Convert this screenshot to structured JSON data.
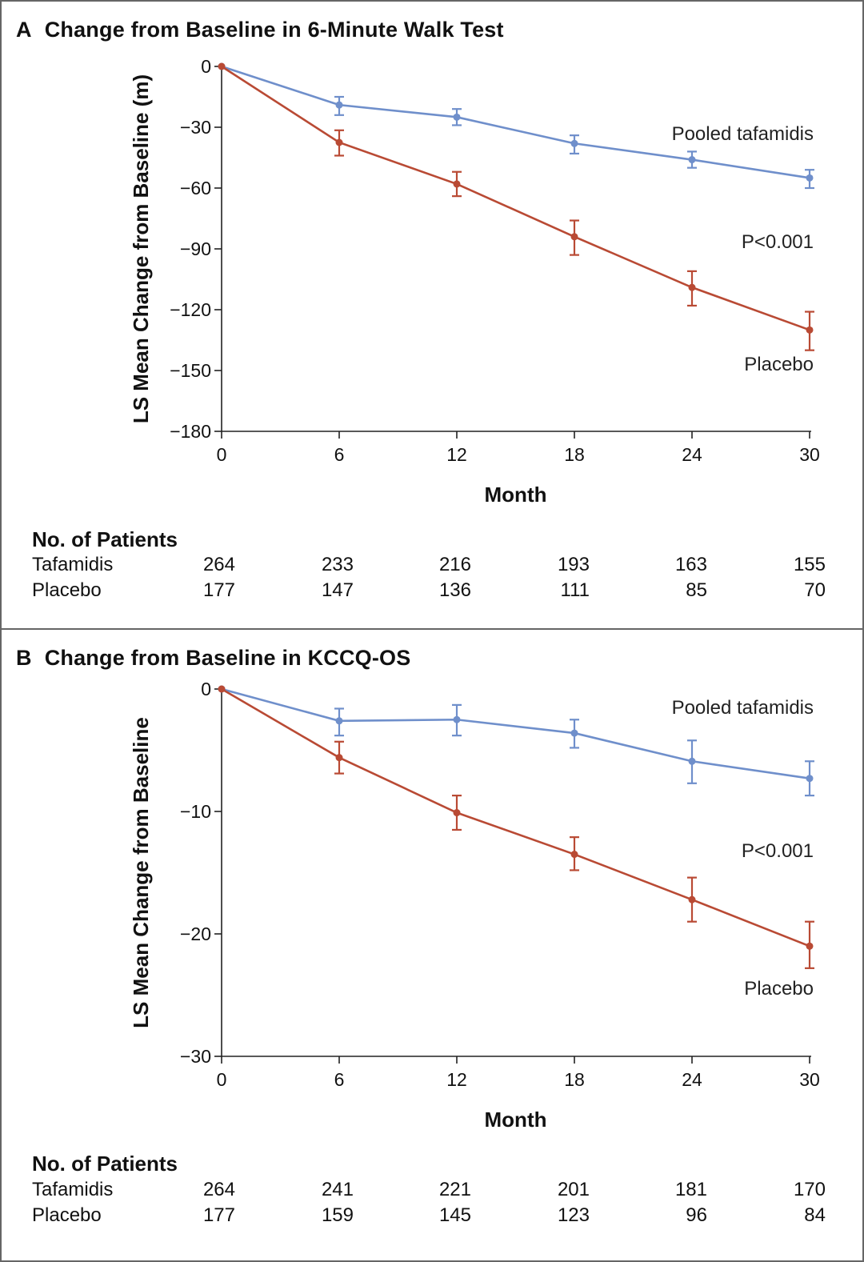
{
  "chart_data": [
    {
      "type": "line",
      "panel_letter": "A",
      "title": "Change from Baseline in 6-Minute Walk Test",
      "xlabel": "Month",
      "ylabel": "LS Mean Change from Baseline (m)",
      "x": [
        0,
        6,
        12,
        18,
        24,
        30
      ],
      "xticks": [
        "0",
        "6",
        "12",
        "18",
        "24",
        "30"
      ],
      "yticks": [
        0,
        -30,
        -60,
        -90,
        -120,
        -150,
        -180
      ],
      "ytick_labels": [
        "0",
        "−30",
        "−60",
        "−90",
        "−120",
        "−150",
        "−180"
      ],
      "ylim": [
        -180,
        0
      ],
      "xlim": [
        0,
        30
      ],
      "series": [
        {
          "name": "Pooled tafamidis",
          "color": "#6f8fcb",
          "values": [
            0,
            -19,
            -25,
            -38,
            -46,
            -55
          ],
          "err_low": [
            0,
            -24,
            -29,
            -43,
            -50,
            -60
          ],
          "err_high": [
            0,
            -15,
            -21,
            -34,
            -42,
            -51
          ]
        },
        {
          "name": "Placebo",
          "color": "#b94a34",
          "values": [
            0,
            -37.5,
            -58,
            -84,
            -109,
            -130
          ],
          "err_low": [
            0,
            -44,
            -64,
            -93,
            -118,
            -140
          ],
          "err_high": [
            0,
            -31.5,
            -52,
            -76,
            -101,
            -121
          ]
        }
      ],
      "annotation": "P<0.001",
      "patients": {
        "heading": "No. of Patients",
        "rows": [
          {
            "label": "Tafamidis",
            "counts": [
              "264",
              "233",
              "216",
              "193",
              "163",
              "155"
            ]
          },
          {
            "label": "Placebo",
            "counts": [
              "177",
              "147",
              "136",
              "111",
              "85",
              "70"
            ]
          }
        ]
      }
    },
    {
      "type": "line",
      "panel_letter": "B",
      "title": "Change from Baseline in KCCQ-OS",
      "xlabel": "Month",
      "ylabel": "LS Mean Change from Baseline",
      "x": [
        0,
        6,
        12,
        18,
        24,
        30
      ],
      "xticks": [
        "0",
        "6",
        "12",
        "18",
        "24",
        "30"
      ],
      "yticks": [
        0,
        -10,
        -20,
        -30
      ],
      "ytick_labels": [
        "0",
        "−10",
        "−20",
        "−30"
      ],
      "ylim": [
        -30,
        0
      ],
      "xlim": [
        0,
        30
      ],
      "series": [
        {
          "name": "Pooled tafamidis",
          "color": "#6f8fcb",
          "values": [
            0,
            -2.6,
            -2.5,
            -3.6,
            -5.9,
            -7.3
          ],
          "err_low": [
            0,
            -3.8,
            -3.8,
            -4.8,
            -7.7,
            -8.7
          ],
          "err_high": [
            0,
            -1.6,
            -1.3,
            -2.5,
            -4.2,
            -5.9
          ]
        },
        {
          "name": "Placebo",
          "color": "#b94a34",
          "values": [
            0,
            -5.6,
            -10.1,
            -13.5,
            -17.2,
            -21
          ],
          "err_low": [
            0,
            -6.9,
            -11.5,
            -14.8,
            -19,
            -22.8
          ],
          "err_high": [
            0,
            -4.3,
            -8.7,
            -12.1,
            -15.4,
            -19
          ]
        }
      ],
      "annotation": "P<0.001",
      "patients": {
        "heading": "No. of Patients",
        "rows": [
          {
            "label": "Tafamidis",
            "counts": [
              "264",
              "241",
              "221",
              "201",
              "181",
              "170"
            ]
          },
          {
            "label": "Placebo",
            "counts": [
              "177",
              "159",
              "145",
              "123",
              "96",
              "84"
            ]
          }
        ]
      }
    }
  ]
}
